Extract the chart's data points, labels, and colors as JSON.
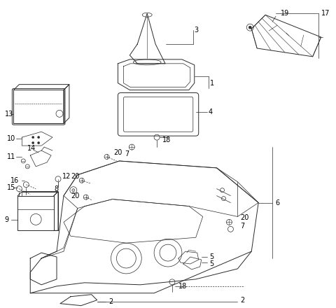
{
  "background_color": "#ffffff",
  "line_color": "#2a2a2a",
  "label_color": "#000000",
  "fig_width": 4.8,
  "fig_height": 4.4,
  "dpi": 100
}
